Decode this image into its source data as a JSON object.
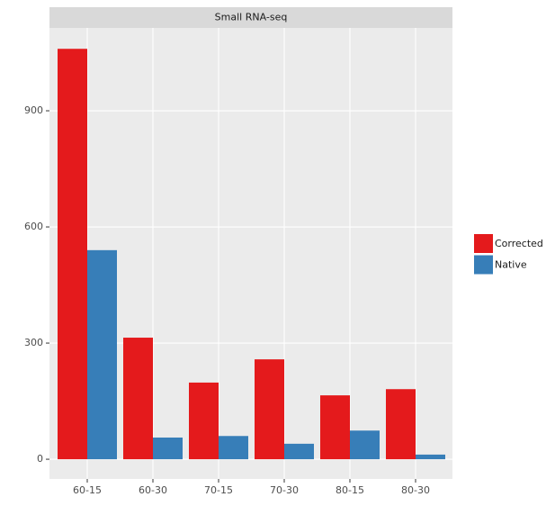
{
  "chart_data": {
    "type": "bar",
    "title": "Small RNA-seq",
    "categories": [
      "60-15",
      "60-30",
      "70-15",
      "70-30",
      "80-15",
      "80-30"
    ],
    "series": [
      {
        "name": "Corrected",
        "color": "#e41a1c",
        "values": [
          1060,
          314,
          198,
          258,
          165,
          181
        ]
      },
      {
        "name": "Native",
        "color": "#377eb8",
        "values": [
          540,
          56,
          60,
          40,
          74,
          12
        ]
      }
    ],
    "ylim": [
      -51,
      1114
    ],
    "yticks": [
      0,
      300,
      600,
      900
    ],
    "grid": true,
    "legend": "right"
  }
}
